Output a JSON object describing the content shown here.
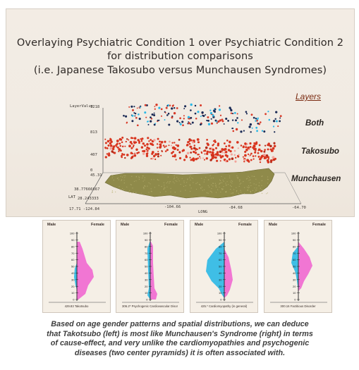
{
  "slide": {
    "title_lines": [
      "Overlaying Psychiatric Condition 1 over Psychiatric Condition 2",
      "for distribution comparisons",
      "(i.e. Japanese Takosubo versus Munchausen Syndromes)"
    ],
    "layers_header": "Layers",
    "layers": [
      "Both",
      "Takosubo",
      "Munchausen"
    ],
    "axis": {
      "layer_value_label": "LayerValue",
      "layer_ticks": [
        "1218",
        "813",
        "407",
        "0"
      ],
      "lat_label": "LAT",
      "lat_ticks": [
        "45.31",
        "38.77666667",
        "28.243333"
      ],
      "long_label": "LONG",
      "long_ticks": [
        "17.71 -124.84",
        "-104.66",
        "-84.68",
        "-64.70"
      ]
    },
    "colors": {
      "both_points": "#1a2a55",
      "both_points_alt": "#d83a28",
      "takosubo_points": "#d8351f",
      "munchausen_map": "#8f8a4a",
      "pink": "#f06fd2",
      "cyan": "#2bb8e6"
    }
  },
  "pyramids": [
    {
      "male": "Male",
      "female": "Female",
      "caption": "429.83 Takotsubo",
      "ticks": [
        "100",
        "90",
        "80",
        "70",
        "60",
        "50",
        "40",
        "30",
        "20",
        "10",
        "0"
      ]
    },
    {
      "male": "Male",
      "female": "Female",
      "caption": "306.2* Psychogenic Cardiovascular Disorder",
      "ticks": [
        "100",
        "90",
        "80",
        "70",
        "60",
        "50",
        "40",
        "30",
        "20",
        "10",
        "0"
      ]
    },
    {
      "male": "Male",
      "female": "Female",
      "caption": "425.* Cardiomyopathy (in general)",
      "ticks": [
        "100",
        "90",
        "80",
        "70",
        "60",
        "50",
        "40",
        "30",
        "20",
        "10",
        "0"
      ]
    },
    {
      "male": "Male",
      "female": "Female",
      "caption": "300.16 Factitious Disorder",
      "ticks": [
        "100",
        "90",
        "80",
        "70",
        "60",
        "50",
        "40",
        "30",
        "20",
        "10",
        "0"
      ]
    }
  ],
  "caption": {
    "lines": [
      "Based on age gender patterns and spatial distributions, we can deduce",
      "that Takotsubo (left) is most like Munchausen's Syndrome (right) in terms",
      "of cause-effect, and very unlike the cardiomyopathies and psychogenic",
      "diseases (two center pyramids) it is often associated with."
    ]
  }
}
